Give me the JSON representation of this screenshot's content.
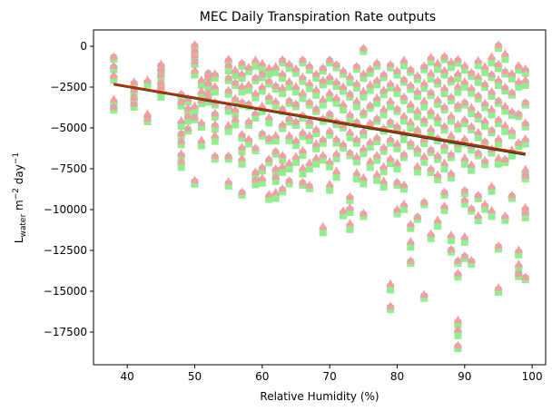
{
  "chart_data": {
    "type": "scatter",
    "title": "MEC Daily Transpiration Rate outputs",
    "xlabel": "Relative Humidity (%)",
    "ylabel_main": "L",
    "ylabel_sub": "water",
    "ylabel_mid": " m",
    "ylabel_sup1": "−2",
    "ylabel_tail": " day",
    "ylabel_sup2": "−1",
    "xlim": [
      35,
      102
    ],
    "ylim": [
      -19500,
      1000
    ],
    "xticks": [
      40,
      50,
      60,
      70,
      80,
      90,
      100
    ],
    "yticks": [
      0,
      -2500,
      -5000,
      -7500,
      -10000,
      -12500,
      -15000,
      -17500
    ],
    "ytick_labels": [
      "0",
      "−2500",
      "−5000",
      "−7500",
      "−10000",
      "−12500",
      "−15000",
      "−17500"
    ],
    "colors": {
      "circle": "#9b8de6",
      "square": "#90ee90",
      "triangle": "#f79e9e",
      "fit_dark": "#1a1a1a",
      "fit_green": "#2e7d32",
      "fit_red": "#cc2200"
    },
    "markers": [
      "circle",
      "square",
      "triangle"
    ],
    "fit_lines": [
      {
        "color": "fit_dark",
        "x": [
          38,
          99
        ],
        "y": [
          -2350,
          -6650
        ]
      },
      {
        "color": "fit_green",
        "x": [
          38,
          99
        ],
        "y": [
          -2330,
          -6600
        ]
      },
      {
        "color": "fit_red",
        "x": [
          38,
          99
        ],
        "y": [
          -2300,
          -6560
        ]
      }
    ],
    "points": [
      [
        38,
        -700
      ],
      [
        38,
        -1300
      ],
      [
        38,
        -1900
      ],
      [
        38,
        -3400
      ],
      [
        38,
        -3800
      ],
      [
        41,
        -2300
      ],
      [
        41,
        -2800
      ],
      [
        41,
        -3200
      ],
      [
        41,
        -3600
      ],
      [
        43,
        -2200
      ],
      [
        43,
        -4300
      ],
      [
        43,
        -4500
      ],
      [
        45,
        -1200
      ],
      [
        45,
        -1500
      ],
      [
        45,
        -1800
      ],
      [
        45,
        -2300
      ],
      [
        45,
        -2600
      ],
      [
        45,
        -2900
      ],
      [
        48,
        -3000
      ],
      [
        48,
        -3500
      ],
      [
        48,
        -4700
      ],
      [
        48,
        -5400
      ],
      [
        48,
        -5900
      ],
      [
        48,
        -6700
      ],
      [
        48,
        -7200
      ],
      [
        49,
        -3300
      ],
      [
        49,
        -3900
      ],
      [
        49,
        -4400
      ],
      [
        49,
        -5100
      ],
      [
        50,
        0
      ],
      [
        50,
        -400
      ],
      [
        50,
        -700
      ],
      [
        50,
        -1000
      ],
      [
        50,
        -1600
      ],
      [
        50,
        -3800
      ],
      [
        50,
        -4400
      ],
      [
        50,
        -8300
      ],
      [
        51,
        -2200
      ],
      [
        51,
        -2900
      ],
      [
        51,
        -3400
      ],
      [
        51,
        -4800
      ],
      [
        51,
        -5900
      ],
      [
        52,
        -1700
      ],
      [
        52,
        -2000
      ],
      [
        52,
        -2400
      ],
      [
        52,
        -3000
      ],
      [
        52,
        -3300
      ],
      [
        53,
        -1800
      ],
      [
        53,
        -2600
      ],
      [
        53,
        -3500
      ],
      [
        53,
        -4200
      ],
      [
        53,
        -4900
      ],
      [
        53,
        -5600
      ],
      [
        53,
        -6800
      ],
      [
        55,
        -900
      ],
      [
        55,
        -1300
      ],
      [
        55,
        -2000
      ],
      [
        55,
        -2800
      ],
      [
        55,
        -3800
      ],
      [
        55,
        -5000
      ],
      [
        55,
        -6800
      ],
      [
        55,
        -8400
      ],
      [
        56,
        -1600
      ],
      [
        56,
        -2300
      ],
      [
        56,
        -3300
      ],
      [
        56,
        -4000
      ],
      [
        56,
        -4600
      ],
      [
        57,
        -1100
      ],
      [
        57,
        -1800
      ],
      [
        57,
        -2600
      ],
      [
        57,
        -3500
      ],
      [
        57,
        -5500
      ],
      [
        57,
        -6300
      ],
      [
        57,
        -7000
      ],
      [
        57,
        -9000
      ],
      [
        58,
        -1400
      ],
      [
        58,
        -2500
      ],
      [
        58,
        -3600
      ],
      [
        58,
        -4700
      ],
      [
        58,
        -5800
      ],
      [
        59,
        -1000
      ],
      [
        59,
        -2000
      ],
      [
        59,
        -3000
      ],
      [
        59,
        -4200
      ],
      [
        59,
        -6300
      ],
      [
        59,
        -7800
      ],
      [
        59,
        -8300
      ],
      [
        60,
        -1200
      ],
      [
        60,
        -1800
      ],
      [
        60,
        -2600
      ],
      [
        60,
        -3800
      ],
      [
        60,
        -5400
      ],
      [
        60,
        -7500
      ],
      [
        60,
        -8200
      ],
      [
        61,
        -1500
      ],
      [
        61,
        -2200
      ],
      [
        61,
        -3200
      ],
      [
        61,
        -4500
      ],
      [
        61,
        -5700
      ],
      [
        61,
        -7000
      ],
      [
        61,
        -9200
      ],
      [
        62,
        -1400
      ],
      [
        62,
        -2500
      ],
      [
        62,
        -3500
      ],
      [
        62,
        -5600
      ],
      [
        62,
        -6500
      ],
      [
        62,
        -7600
      ],
      [
        62,
        -8100
      ],
      [
        62,
        -9100
      ],
      [
        63,
        -900
      ],
      [
        63,
        -1800
      ],
      [
        63,
        -2700
      ],
      [
        63,
        -3900
      ],
      [
        63,
        -4900
      ],
      [
        63,
        -6800
      ],
      [
        63,
        -7500
      ],
      [
        63,
        -8800
      ],
      [
        64,
        -1200
      ],
      [
        64,
        -2300
      ],
      [
        64,
        -3400
      ],
      [
        64,
        -4500
      ],
      [
        64,
        -5600
      ],
      [
        64,
        -7300
      ],
      [
        64,
        -8300
      ],
      [
        65,
        -1500
      ],
      [
        65,
        -2600
      ],
      [
        65,
        -3600
      ],
      [
        65,
        -4700
      ],
      [
        65,
        -5900
      ],
      [
        65,
        -6900
      ],
      [
        66,
        -900
      ],
      [
        66,
        -2000
      ],
      [
        66,
        -3000
      ],
      [
        66,
        -4300
      ],
      [
        66,
        -5400
      ],
      [
        66,
        -6500
      ],
      [
        66,
        -7600
      ],
      [
        66,
        -8400
      ],
      [
        67,
        -1300
      ],
      [
        67,
        -2400
      ],
      [
        67,
        -3500
      ],
      [
        67,
        -4700
      ],
      [
        67,
        -5600
      ],
      [
        67,
        -7300
      ],
      [
        67,
        -8600
      ],
      [
        68,
        -1800
      ],
      [
        68,
        -2800
      ],
      [
        68,
        -3900
      ],
      [
        68,
        -5200
      ],
      [
        68,
        -6100
      ],
      [
        68,
        -7000
      ],
      [
        69,
        -1400
      ],
      [
        69,
        -2200
      ],
      [
        69,
        -3400
      ],
      [
        69,
        -4500
      ],
      [
        69,
        -5800
      ],
      [
        69,
        -6800
      ],
      [
        69,
        -11200
      ],
      [
        70,
        -900
      ],
      [
        70,
        -2000
      ],
      [
        70,
        -3000
      ],
      [
        70,
        -4200
      ],
      [
        70,
        -5300
      ],
      [
        70,
        -7200
      ],
      [
        70,
        -8600
      ],
      [
        71,
        -1200
      ],
      [
        71,
        -2300
      ],
      [
        71,
        -3300
      ],
      [
        71,
        -4700
      ],
      [
        71,
        -5800
      ],
      [
        71,
        -6700
      ],
      [
        71,
        -7800
      ],
      [
        72,
        -1600
      ],
      [
        72,
        -2600
      ],
      [
        72,
        -3700
      ],
      [
        72,
        -4900
      ],
      [
        72,
        -6100
      ],
      [
        72,
        -10200
      ],
      [
        73,
        -2000
      ],
      [
        73,
        -3000
      ],
      [
        73,
        -4300
      ],
      [
        73,
        -5400
      ],
      [
        73,
        -6600
      ],
      [
        73,
        -9300
      ],
      [
        73,
        -10000
      ],
      [
        73,
        -11000
      ],
      [
        74,
        -1300
      ],
      [
        74,
        -2400
      ],
      [
        74,
        -3500
      ],
      [
        74,
        -4700
      ],
      [
        74,
        -5800
      ],
      [
        74,
        -6900
      ],
      [
        74,
        -7900
      ],
      [
        75,
        -200
      ],
      [
        75,
        -1800
      ],
      [
        75,
        -2900
      ],
      [
        75,
        -4100
      ],
      [
        75,
        -5300
      ],
      [
        75,
        -6400
      ],
      [
        75,
        -8200
      ],
      [
        75,
        -10300
      ],
      [
        76,
        -1500
      ],
      [
        76,
        -2500
      ],
      [
        76,
        -3700
      ],
      [
        76,
        -4800
      ],
      [
        76,
        -6000
      ],
      [
        76,
        -7200
      ],
      [
        77,
        -1100
      ],
      [
        77,
        -2200
      ],
      [
        77,
        -3300
      ],
      [
        77,
        -4500
      ],
      [
        77,
        -5700
      ],
      [
        77,
        -6800
      ],
      [
        77,
        -8000
      ],
      [
        78,
        -1800
      ],
      [
        78,
        -2800
      ],
      [
        78,
        -4000
      ],
      [
        78,
        -5100
      ],
      [
        78,
        -6300
      ],
      [
        78,
        -7500
      ],
      [
        78,
        -8400
      ],
      [
        79,
        -1200
      ],
      [
        79,
        -2400
      ],
      [
        79,
        -3500
      ],
      [
        79,
        -4700
      ],
      [
        79,
        -5800
      ],
      [
        79,
        -7000
      ],
      [
        79,
        -14700
      ],
      [
        79,
        -16000
      ],
      [
        80,
        -1600
      ],
      [
        80,
        -2700
      ],
      [
        80,
        -3900
      ],
      [
        80,
        -5000
      ],
      [
        80,
        -6100
      ],
      [
        80,
        -7300
      ],
      [
        80,
        -8400
      ],
      [
        80,
        -10100
      ],
      [
        81,
        -1000
      ],
      [
        81,
        -2100
      ],
      [
        81,
        -3200
      ],
      [
        81,
        -4400
      ],
      [
        81,
        -5500
      ],
      [
        81,
        -6700
      ],
      [
        81,
        -8600
      ],
      [
        81,
        -9800
      ],
      [
        82,
        -1500
      ],
      [
        82,
        -2500
      ],
      [
        82,
        -3700
      ],
      [
        82,
        -4800
      ],
      [
        82,
        -6000
      ],
      [
        82,
        -11000
      ],
      [
        82,
        -12100
      ],
      [
        82,
        -13200
      ],
      [
        83,
        -1900
      ],
      [
        83,
        -2900
      ],
      [
        83,
        -4100
      ],
      [
        83,
        -5200
      ],
      [
        83,
        -6400
      ],
      [
        83,
        -7500
      ],
      [
        83,
        -10500
      ],
      [
        84,
        -1300
      ],
      [
        84,
        -2400
      ],
      [
        84,
        -3500
      ],
      [
        84,
        -4600
      ],
      [
        84,
        -5800
      ],
      [
        84,
        -6900
      ],
      [
        84,
        -9600
      ],
      [
        84,
        -15300
      ],
      [
        85,
        -800
      ],
      [
        85,
        -1800
      ],
      [
        85,
        -2900
      ],
      [
        85,
        -4100
      ],
      [
        85,
        -5200
      ],
      [
        85,
        -6400
      ],
      [
        85,
        -7600
      ],
      [
        85,
        -11600
      ],
      [
        86,
        -1200
      ],
      [
        86,
        -2200
      ],
      [
        86,
        -3400
      ],
      [
        86,
        -4500
      ],
      [
        86,
        -5700
      ],
      [
        86,
        -6800
      ],
      [
        86,
        -8000
      ],
      [
        86,
        -10800
      ],
      [
        87,
        -700
      ],
      [
        87,
        -1600
      ],
      [
        87,
        -2700
      ],
      [
        87,
        -3800
      ],
      [
        87,
        -5000
      ],
      [
        87,
        -6200
      ],
      [
        87,
        -7300
      ],
      [
        87,
        -9000
      ],
      [
        87,
        -9900
      ],
      [
        88,
        -1100
      ],
      [
        88,
        -2100
      ],
      [
        88,
        -3200
      ],
      [
        88,
        -4400
      ],
      [
        88,
        -5600
      ],
      [
        88,
        -6700
      ],
      [
        88,
        -7900
      ],
      [
        88,
        -11700
      ],
      [
        88,
        -12500
      ],
      [
        89,
        -900
      ],
      [
        89,
        -1800
      ],
      [
        89,
        -2600
      ],
      [
        89,
        -3700
      ],
      [
        89,
        -4900
      ],
      [
        89,
        -6100
      ],
      [
        89,
        -13200
      ],
      [
        89,
        -14000
      ],
      [
        89,
        -16900
      ],
      [
        89,
        -17500
      ],
      [
        89,
        -18400
      ],
      [
        90,
        -1300
      ],
      [
        90,
        -2300
      ],
      [
        90,
        -3500
      ],
      [
        90,
        -4600
      ],
      [
        90,
        -5800
      ],
      [
        90,
        -7000
      ],
      [
        90,
        -8900
      ],
      [
        90,
        -9500
      ],
      [
        90,
        -11800
      ],
      [
        90,
        -12900
      ],
      [
        91,
        -1700
      ],
      [
        91,
        -2700
      ],
      [
        91,
        -3900
      ],
      [
        91,
        -5000
      ],
      [
        91,
        -6200
      ],
      [
        91,
        -7400
      ],
      [
        91,
        -10000
      ],
      [
        91,
        -13200
      ],
      [
        92,
        -1000
      ],
      [
        92,
        -2000
      ],
      [
        92,
        -3100
      ],
      [
        92,
        -4300
      ],
      [
        92,
        -5400
      ],
      [
        92,
        -6600
      ],
      [
        92,
        -9200
      ],
      [
        92,
        -10500
      ],
      [
        93,
        -1400
      ],
      [
        93,
        -2400
      ],
      [
        93,
        -3600
      ],
      [
        93,
        -4700
      ],
      [
        93,
        -5900
      ],
      [
        93,
        -7100
      ],
      [
        93,
        -9800
      ],
      [
        94,
        -800
      ],
      [
        94,
        -1800
      ],
      [
        94,
        -2900
      ],
      [
        94,
        -4000
      ],
      [
        94,
        -5200
      ],
      [
        94,
        -6400
      ],
      [
        94,
        -8700
      ],
      [
        94,
        -10200
      ],
      [
        95,
        0
      ],
      [
        95,
        -1200
      ],
      [
        95,
        -2200
      ],
      [
        95,
        -3400
      ],
      [
        95,
        -4600
      ],
      [
        95,
        -5800
      ],
      [
        95,
        -7000
      ],
      [
        95,
        -12300
      ],
      [
        95,
        -14900
      ],
      [
        96,
        -600
      ],
      [
        96,
        -1600
      ],
      [
        96,
        -2600
      ],
      [
        96,
        -3800
      ],
      [
        96,
        -5000
      ],
      [
        96,
        -7000
      ],
      [
        96,
        -10500
      ],
      [
        97,
        -1800
      ],
      [
        97,
        -2900
      ],
      [
        97,
        -4100
      ],
      [
        97,
        -5300
      ],
      [
        97,
        -6500
      ],
      [
        97,
        -9200
      ],
      [
        98,
        -1300
      ],
      [
        98,
        -2300
      ],
      [
        98,
        -4200
      ],
      [
        98,
        -6000
      ],
      [
        98,
        -12600
      ],
      [
        98,
        -13500
      ],
      [
        98,
        -14000
      ],
      [
        99,
        -1500
      ],
      [
        99,
        -2200
      ],
      [
        99,
        -3500
      ],
      [
        99,
        -4800
      ],
      [
        99,
        -5800
      ],
      [
        99,
        -7700
      ],
      [
        99,
        -8000
      ],
      [
        99,
        -10000
      ],
      [
        99,
        -10300
      ],
      [
        99,
        -14200
      ]
    ]
  }
}
